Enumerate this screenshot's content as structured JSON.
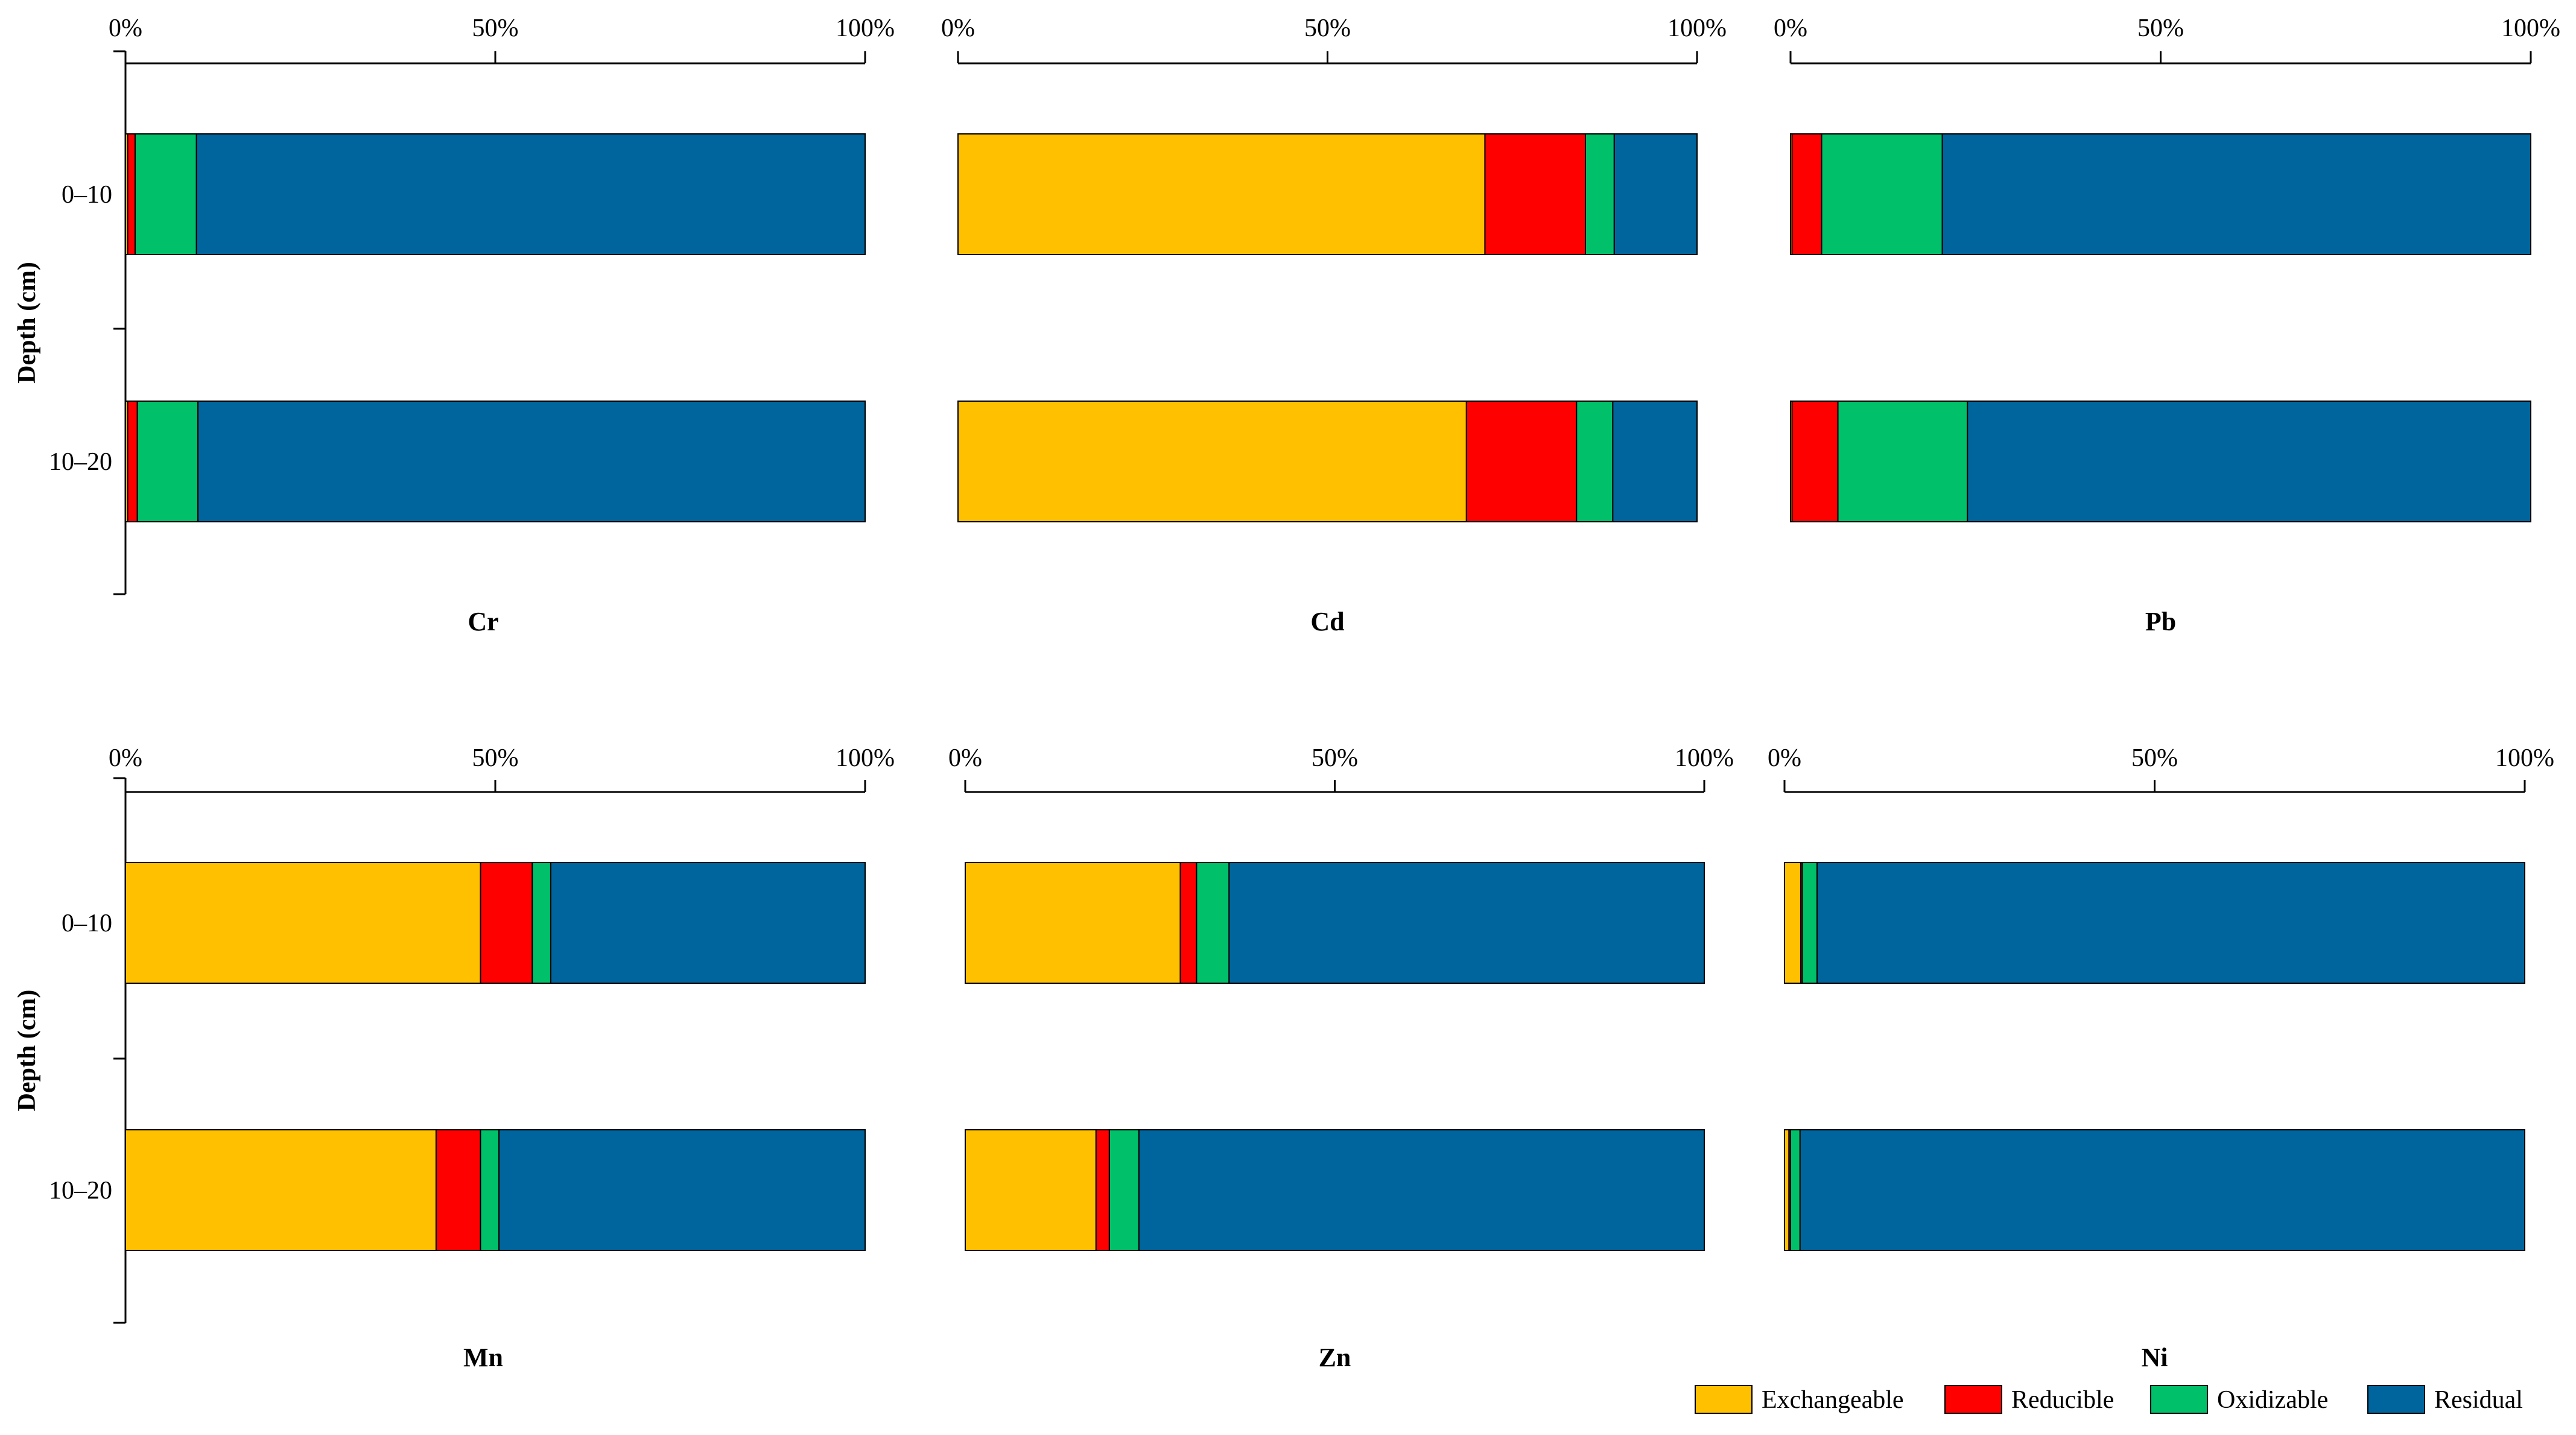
{
  "chart_data": {
    "type": "bar",
    "orientation": "horizontal",
    "stacked": "100%",
    "depths": [
      "0–10",
      "10–20"
    ],
    "ylabel": "Depth (cm)",
    "x_ticks": [
      "0%",
      "50%",
      "100%"
    ],
    "xlim": [
      0,
      100
    ],
    "series": [
      {
        "name": "Exchangeable",
        "color": "#FFC000"
      },
      {
        "name": "Reducible",
        "color": "#FF0000"
      },
      {
        "name": "Oxidizable",
        "color": "#00C06A"
      },
      {
        "name": "Residual",
        "color": "#00659C"
      }
    ],
    "panels": [
      {
        "metal": "Cr",
        "values": {
          "0–10": [
            0.3,
            1.0,
            8.3,
            90.4
          ],
          "10–20": [
            0.3,
            1.3,
            8.2,
            90.2
          ]
        }
      },
      {
        "metal": "Cd",
        "values": {
          "0–10": [
            71.3,
            13.6,
            3.9,
            11.2
          ],
          "10–20": [
            68.8,
            14.9,
            4.9,
            11.4
          ]
        }
      },
      {
        "metal": "Pb",
        "values": {
          "0–10": [
            0.2,
            4.0,
            16.3,
            79.5
          ],
          "10–20": [
            0.2,
            6.2,
            17.5,
            76.1
          ]
        }
      },
      {
        "metal": "Mn",
        "values": {
          "0–10": [
            48.0,
            7.0,
            2.5,
            42.5
          ],
          "10–20": [
            42.0,
            6.0,
            2.5,
            49.5
          ]
        }
      },
      {
        "metal": "Zn",
        "values": {
          "0–10": [
            29.1,
            2.2,
            4.4,
            64.3
          ],
          "10–20": [
            17.7,
            1.8,
            4.0,
            76.5
          ]
        }
      },
      {
        "metal": "Ni",
        "values": {
          "0–10": [
            2.2,
            0.2,
            2.0,
            95.6
          ],
          "10–20": [
            0.6,
            0.2,
            1.3,
            97.9
          ]
        }
      }
    ]
  }
}
